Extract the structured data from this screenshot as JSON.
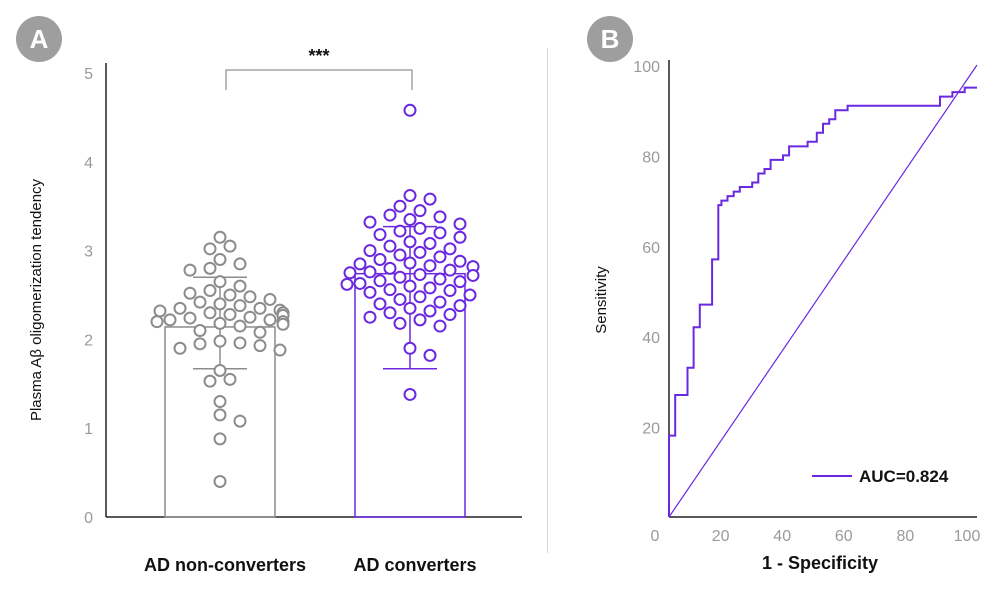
{
  "panels": {
    "a_label": "A",
    "b_label": "B"
  },
  "colors": {
    "gray": "#8c8c8c",
    "purple": "#6a28e0",
    "axis": "#222222",
    "tick": "#9a9a9a",
    "badge": "#9e9e9e"
  },
  "chart_data": [
    {
      "type": "scatter",
      "subtype": "bar-with-dot-plot",
      "ylabel": "Plasma Aβ oligomerization tendency",
      "xlabel": "",
      "ylim": [
        0,
        5
      ],
      "yticks": [
        "0",
        "1",
        "2",
        "3",
        "4",
        "5"
      ],
      "categories": [
        "AD non-converters",
        "AD converters"
      ],
      "significance": "***",
      "groups": [
        {
          "name": "AD non-converters",
          "mean": 2.14,
          "sd_low": 1.67,
          "sd_high": 2.7,
          "color": "#8c8c8c",
          "points": [
            3.15,
            3.05,
            3.02,
            2.9,
            2.85,
            2.8,
            2.78,
            2.65,
            2.6,
            2.55,
            2.52,
            2.5,
            2.48,
            2.45,
            2.42,
            2.4,
            2.38,
            2.35,
            2.35,
            2.33,
            2.32,
            2.3,
            2.3,
            2.28,
            2.27,
            2.25,
            2.24,
            2.22,
            2.22,
            2.2,
            2.2,
            2.18,
            2.17,
            2.15,
            2.1,
            2.08,
            1.98,
            1.96,
            1.95,
            1.93,
            1.9,
            1.88,
            1.65,
            1.55,
            1.53,
            1.3,
            1.15,
            1.08,
            0.88,
            0.4
          ]
        },
        {
          "name": "AD converters",
          "mean": 2.74,
          "sd_low": 1.67,
          "sd_high": 3.27,
          "color": "#6a28e0",
          "points": [
            4.58,
            3.62,
            3.58,
            3.5,
            3.45,
            3.4,
            3.38,
            3.35,
            3.32,
            3.3,
            3.25,
            3.22,
            3.2,
            3.18,
            3.15,
            3.1,
            3.08,
            3.05,
            3.02,
            3.0,
            2.98,
            2.95,
            2.93,
            2.9,
            2.88,
            2.86,
            2.85,
            2.83,
            2.82,
            2.8,
            2.78,
            2.76,
            2.75,
            2.73,
            2.72,
            2.7,
            2.68,
            2.66,
            2.65,
            2.63,
            2.62,
            2.6,
            2.58,
            2.56,
            2.55,
            2.53,
            2.5,
            2.48,
            2.45,
            2.42,
            2.4,
            2.38,
            2.35,
            2.32,
            2.3,
            2.28,
            2.25,
            2.22,
            2.18,
            2.15,
            1.9,
            1.82,
            1.38
          ]
        }
      ]
    },
    {
      "type": "line",
      "subtype": "roc",
      "xlabel": "1 - Specificity",
      "ylabel": "Sensitivity",
      "xlim": [
        0,
        100
      ],
      "ylim": [
        0,
        100
      ],
      "xticks": [
        "0",
        "20",
        "40",
        "60",
        "80",
        "100"
      ],
      "yticks": [
        "20",
        "40",
        "60",
        "80",
        "100"
      ],
      "legend": "AUC=0.824",
      "legend_position": "bottom-right",
      "diagonal": true,
      "series": [
        {
          "name": "AUC=0.824",
          "color": "#6a28e0",
          "x": [
            0,
            0,
            2,
            2,
            4,
            4,
            6,
            6,
            8,
            8,
            10,
            10,
            14,
            14,
            16,
            16,
            17,
            17,
            19,
            19,
            21,
            21,
            23,
            23,
            27,
            27,
            29,
            29,
            31,
            31,
            33,
            33,
            37,
            37,
            39,
            39,
            45,
            45,
            48,
            48,
            50,
            50,
            52,
            52,
            54,
            54,
            58,
            58,
            71,
            71,
            88,
            88,
            92,
            92,
            96,
            96,
            100
          ],
          "y": [
            0,
            18,
            18,
            27,
            27,
            27,
            27,
            33,
            33,
            42,
            42,
            47,
            47,
            57,
            57,
            69,
            69,
            70,
            70,
            71,
            71,
            72,
            72,
            73,
            73,
            74,
            74,
            76,
            76,
            77,
            77,
            79,
            79,
            80,
            80,
            82,
            82,
            83,
            83,
            85,
            85,
            87,
            87,
            88,
            88,
            90,
            90,
            91,
            91,
            91,
            91,
            93,
            93,
            94,
            94,
            95,
            95
          ]
        }
      ]
    }
  ]
}
